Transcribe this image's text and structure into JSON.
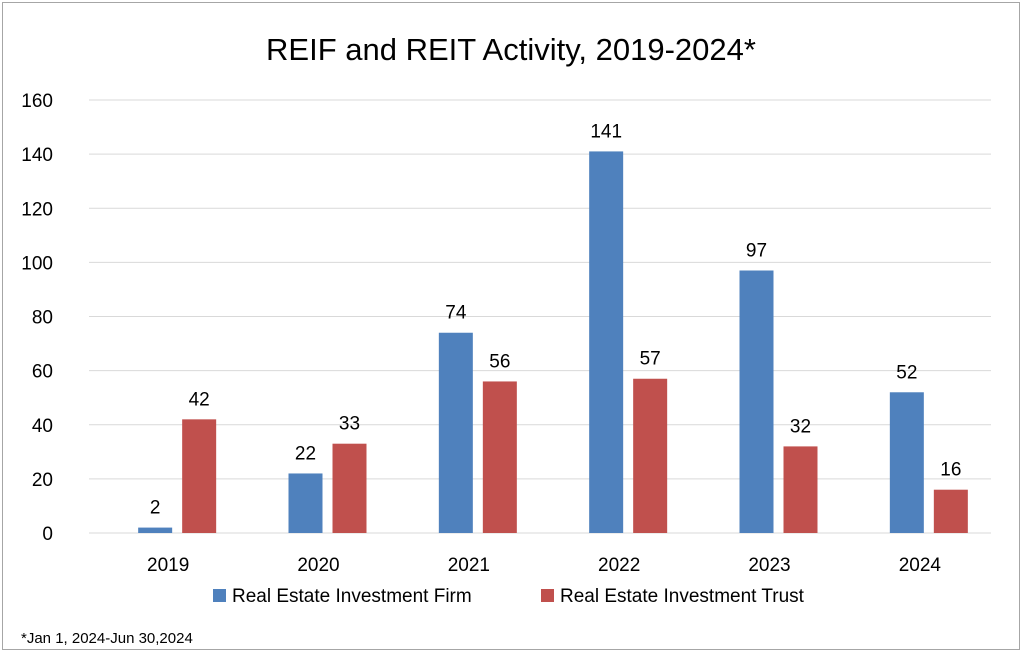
{
  "chart_data": {
    "type": "bar",
    "title": "REIF and REIT Activity, 2019-2024*",
    "categories": [
      "2019",
      "2020",
      "2021",
      "2022",
      "2023",
      "2024"
    ],
    "series": [
      {
        "name": "Real Estate Investment Firm",
        "color": "#4f81bd",
        "values": [
          2,
          22,
          74,
          141,
          97,
          52
        ]
      },
      {
        "name": "Real Estate Investment Trust",
        "color": "#c0504d",
        "values": [
          42,
          33,
          56,
          57,
          32,
          16
        ]
      }
    ],
    "ylim": [
      0,
      160
    ],
    "yticks": [
      0,
      20,
      40,
      60,
      80,
      100,
      120,
      140,
      160
    ],
    "xlabel": "",
    "ylabel": "",
    "grid": true,
    "legend_position": "bottom-center",
    "footnote": "*Jan 1, 2024-Jun 30,2024"
  }
}
